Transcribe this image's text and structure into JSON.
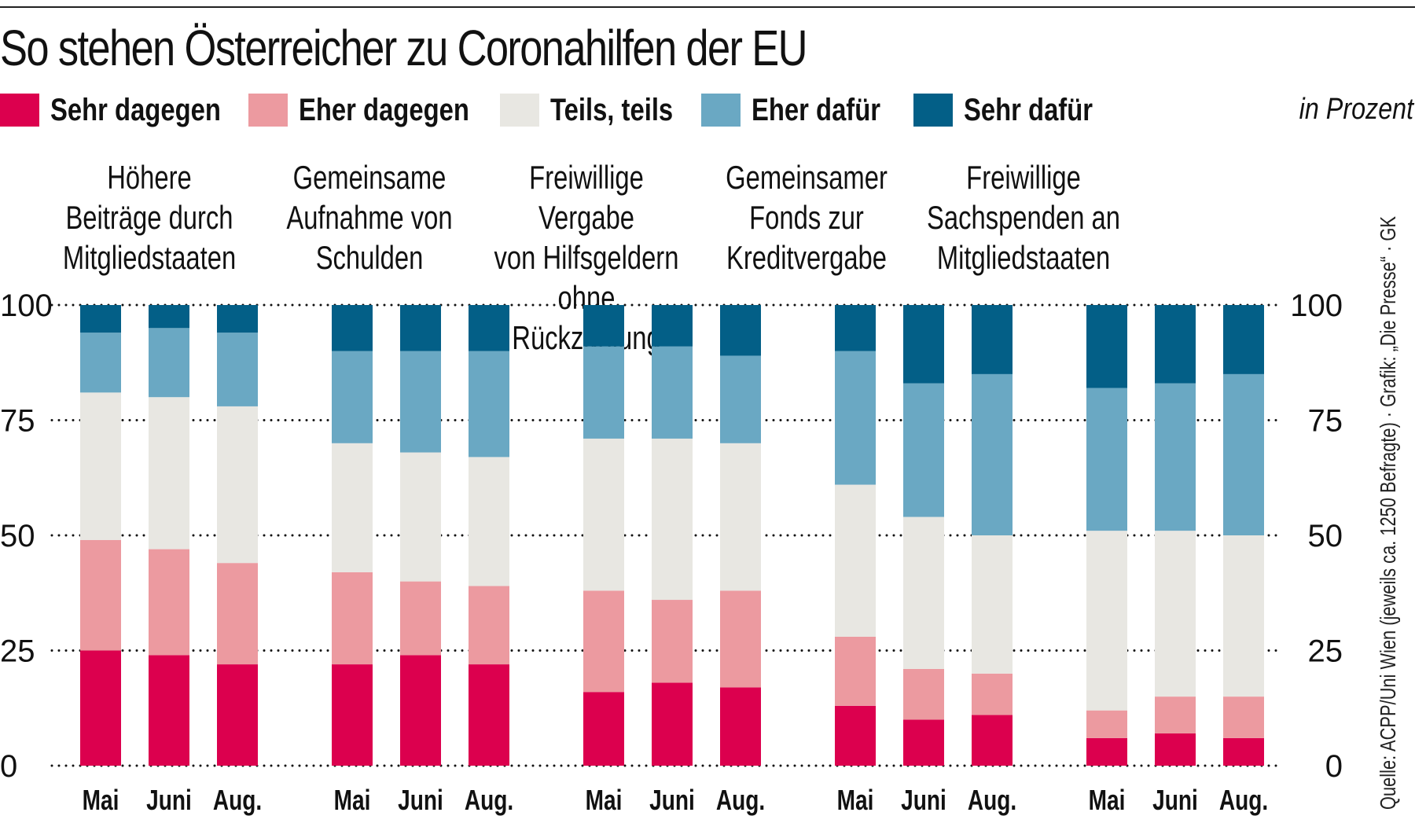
{
  "title": "So stehen Österreicher zu Coronahilfen der EU",
  "unit_note": "in Prozent",
  "source": "Quelle: ACPP/Uni Wien (jeweils ca. 1250 Befragte) · Grafik: „Die Presse“ · GK",
  "legend": [
    {
      "label": "Sehr dagegen",
      "color": "#dc004e"
    },
    {
      "label": "Eher dagegen",
      "color": "#ec9aa0"
    },
    {
      "label": "Teils, teils",
      "color": "#e8e7e2"
    },
    {
      "label": "Eher dafür",
      "color": "#6aa8c3"
    },
    {
      "label": "Sehr dafür",
      "color": "#035f87"
    }
  ],
  "chart_data": {
    "type": "bar",
    "stacked": true,
    "title": "So stehen Österreicher zu Coronahilfen der EU",
    "ylabel": "in Prozent",
    "ylim": [
      0,
      100
    ],
    "yticks": [
      0,
      25,
      50,
      75,
      100
    ],
    "grid": "dotted horizontal",
    "legend_position": "top",
    "series_names": [
      "Sehr dagegen",
      "Eher dagegen",
      "Teils, teils",
      "Eher dafür",
      "Sehr dafür"
    ],
    "groups": [
      {
        "title": "Höhere\nBeiträge durch\nMitgliedstaaten",
        "categories": [
          "Mai",
          "Juni",
          "Aug."
        ],
        "values": [
          [
            25,
            24,
            32,
            13,
            6
          ],
          [
            24,
            23,
            33,
            15,
            5
          ],
          [
            22,
            22,
            34,
            16,
            6
          ]
        ]
      },
      {
        "title": "Gemeinsame\nAufnahme von\nSchulden",
        "categories": [
          "Mai",
          "Juni",
          "Aug."
        ],
        "values": [
          [
            22,
            20,
            28,
            20,
            10
          ],
          [
            24,
            16,
            28,
            22,
            10
          ],
          [
            22,
            17,
            28,
            23,
            10
          ]
        ]
      },
      {
        "title": "Freiwillige Vergabe\nvon Hilfsgeldern\nohne Rückzahlung",
        "categories": [
          "Mai",
          "Juni",
          "Aug."
        ],
        "values": [
          [
            16,
            22,
            33,
            20,
            9
          ],
          [
            18,
            18,
            35,
            20,
            9
          ],
          [
            17,
            21,
            32,
            19,
            11
          ]
        ]
      },
      {
        "title": "Gemeinsamer\nFonds zur\nKreditvergabe",
        "categories": [
          "Mai",
          "Juni",
          "Aug."
        ],
        "values": [
          [
            13,
            15,
            33,
            29,
            10
          ],
          [
            10,
            11,
            33,
            29,
            17
          ],
          [
            11,
            9,
            30,
            35,
            15
          ]
        ]
      },
      {
        "title": "Freiwillige\nSachspenden an\nMitgliedstaaten",
        "categories": [
          "Mai",
          "Juni",
          "Aug."
        ],
        "values": [
          [
            6,
            6,
            39,
            31,
            18
          ],
          [
            7,
            8,
            36,
            32,
            17
          ],
          [
            6,
            9,
            35,
            35,
            15
          ]
        ]
      }
    ]
  }
}
